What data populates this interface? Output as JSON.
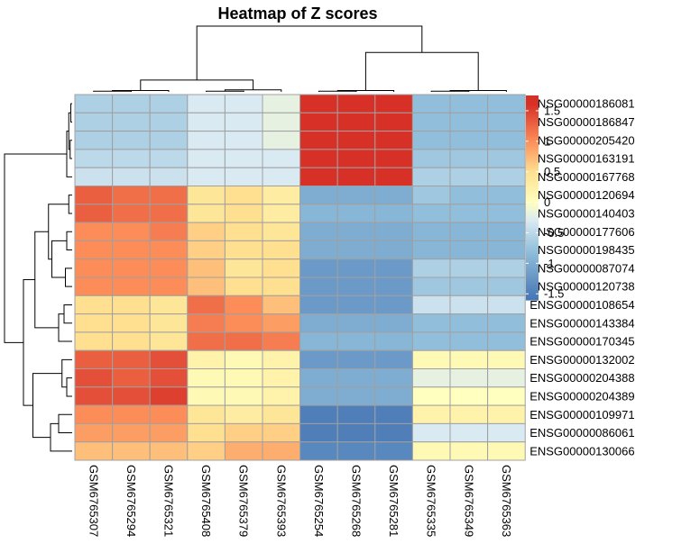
{
  "chart_data": {
    "type": "heatmap",
    "title": "Heatmap of Z scores",
    "rows": [
      "ENSG00000186081",
      "ENSG00000186847",
      "ENSG00000205420",
      "ENSG00000163191",
      "ENSG00000167768",
      "ENSG00000120694",
      "ENSG00000140403",
      "ENSG00000177606",
      "ENSG00000198435",
      "ENSG00000087074",
      "ENSG00000120738",
      "ENSG00000108654",
      "ENSG00000143384",
      "ENSG00000170345",
      "ENSG00000132002",
      "ENSG00000204388",
      "ENSG00000204389",
      "ENSG00000109971",
      "ENSG00000086061",
      "ENSG00000130066"
    ],
    "columns": [
      "GSM6765307",
      "GSM6765294",
      "GSM6765321",
      "GSM6765408",
      "GSM6765379",
      "GSM6765393",
      "GSM6765254",
      "GSM6765268",
      "GSM6765281",
      "GSM6765335",
      "GSM6765349",
      "GSM6765363"
    ],
    "values": [
      [
        -0.6,
        -0.6,
        -0.6,
        -0.3,
        -0.3,
        -0.2,
        1.6,
        1.6,
        1.6,
        -0.8,
        -0.8,
        -0.8
      ],
      [
        -0.6,
        -0.6,
        -0.6,
        -0.3,
        -0.3,
        -0.2,
        1.6,
        1.6,
        1.6,
        -0.8,
        -0.8,
        -0.8
      ],
      [
        -0.6,
        -0.6,
        -0.6,
        -0.3,
        -0.3,
        -0.2,
        1.6,
        1.6,
        1.6,
        -0.8,
        -0.8,
        -0.8
      ],
      [
        -0.5,
        -0.5,
        -0.5,
        -0.3,
        -0.3,
        -0.3,
        1.6,
        1.6,
        1.6,
        -0.7,
        -0.7,
        -0.7
      ],
      [
        -0.4,
        -0.4,
        -0.4,
        -0.3,
        -0.3,
        -0.3,
        1.6,
        1.6,
        1.6,
        -0.6,
        -0.6,
        -0.6
      ],
      [
        1.3,
        1.2,
        1.2,
        0.4,
        0.5,
        0.3,
        -1.0,
        -1.0,
        -1.0,
        -0.7,
        -0.8,
        -0.8
      ],
      [
        1.3,
        1.2,
        1.2,
        0.4,
        0.5,
        0.3,
        -0.9,
        -0.9,
        -0.9,
        -0.8,
        -0.8,
        -0.8
      ],
      [
        1.0,
        1.0,
        1.1,
        0.6,
        0.5,
        0.4,
        -1.0,
        -1.0,
        -1.0,
        -0.9,
        -0.9,
        -0.9
      ],
      [
        1.0,
        1.0,
        1.0,
        0.6,
        0.5,
        0.5,
        -1.0,
        -1.0,
        -1.0,
        -0.9,
        -0.9,
        -0.9
      ],
      [
        1.0,
        1.0,
        1.0,
        0.7,
        0.4,
        0.5,
        -1.2,
        -1.2,
        -1.2,
        -0.6,
        -0.6,
        -0.6
      ],
      [
        1.0,
        1.0,
        1.0,
        0.7,
        0.5,
        0.5,
        -1.2,
        -1.2,
        -1.2,
        -0.7,
        -0.7,
        -0.7
      ],
      [
        0.5,
        0.5,
        0.4,
        1.2,
        1.0,
        0.7,
        -1.2,
        -1.2,
        -1.2,
        -0.4,
        -0.4,
        -0.4
      ],
      [
        0.5,
        0.5,
        0.4,
        1.1,
        1.0,
        0.9,
        -1.0,
        -1.0,
        -1.0,
        -0.8,
        -0.8,
        -0.8
      ],
      [
        0.5,
        0.5,
        0.4,
        1.2,
        1.2,
        1.1,
        -0.9,
        -0.9,
        -0.9,
        -0.8,
        -0.8,
        -0.8
      ],
      [
        1.3,
        1.3,
        1.4,
        0.2,
        0.1,
        0.2,
        -1.2,
        -1.2,
        -1.2,
        0.1,
        0.1,
        0.1
      ],
      [
        1.4,
        1.3,
        1.4,
        0.1,
        0.1,
        0.2,
        -1.0,
        -1.0,
        -1.0,
        -0.2,
        -0.2,
        -0.2
      ],
      [
        1.4,
        1.4,
        1.5,
        0.1,
        0.1,
        0.2,
        -1.0,
        -1.0,
        -1.0,
        0.0,
        0.0,
        0.0
      ],
      [
        1.0,
        1.0,
        1.0,
        0.4,
        0.3,
        0.4,
        -1.5,
        -1.5,
        -1.5,
        0.2,
        0.2,
        0.2
      ],
      [
        0.9,
        0.9,
        0.9,
        0.5,
        0.6,
        0.6,
        -1.5,
        -1.5,
        -1.5,
        -0.3,
        -0.3,
        -0.3
      ],
      [
        0.7,
        0.7,
        0.7,
        0.6,
        0.8,
        0.8,
        -1.4,
        -1.4,
        -1.4,
        0.1,
        0.1,
        0.1
      ]
    ],
    "color_scale": {
      "low": "#4575b4",
      "mid": "#ffffbf",
      "high": "#d73027",
      "stops": [
        {
          "v": -1.6,
          "c": "#4575b4"
        },
        {
          "v": -0.8,
          "c": "#91bfdb"
        },
        {
          "v": -0.3,
          "c": "#d9eaf2"
        },
        {
          "v": 0.0,
          "c": "#ffffbf"
        },
        {
          "v": 0.5,
          "c": "#fee090"
        },
        {
          "v": 1.0,
          "c": "#fc8d59"
        },
        {
          "v": 1.6,
          "c": "#d73027"
        }
      ]
    },
    "legend": {
      "ticks": [
        1.5,
        1,
        0.5,
        0,
        -0.5,
        -1,
        -1.5
      ],
      "tick_labels": [
        "1.5",
        "1",
        "0.5",
        "0",
        "-0.5",
        "-1",
        "-1.5"
      ],
      "range": [
        -1.6,
        1.75
      ],
      "placement": "right"
    },
    "cell_border_color": "#a0a0a0",
    "row_dendrogram": {
      "merges": [
        [
          0,
          1,
          0.02
        ],
        [
          2,
          3,
          0.03
        ],
        [
          20,
          21,
          0.05
        ],
        [
          4,
          22,
          0.08
        ],
        [
          5,
          6,
          0.05
        ],
        [
          7,
          8,
          0.08
        ],
        [
          9,
          10,
          0.1
        ],
        [
          25,
          26,
          0.3
        ],
        [
          24,
          27,
          0.35
        ],
        [
          11,
          12,
          0.12
        ],
        [
          13,
          29,
          0.2
        ],
        [
          28,
          30,
          0.55
        ],
        [
          15,
          16,
          0.08
        ],
        [
          14,
          32,
          0.15
        ],
        [
          17,
          18,
          0.2
        ],
        [
          34,
          19,
          0.32
        ],
        [
          33,
          35,
          0.58
        ],
        [
          31,
          36,
          0.72
        ],
        [
          23,
          37,
          1.0
        ]
      ]
    },
    "col_dendrogram": {
      "merges": [
        [
          0,
          1,
          0.01
        ],
        [
          12,
          2,
          0.02
        ],
        [
          3,
          4,
          0.01
        ],
        [
          14,
          5,
          0.03
        ],
        [
          13,
          15,
          0.18
        ],
        [
          6,
          7,
          0.01
        ],
        [
          17,
          8,
          0.02
        ],
        [
          9,
          10,
          0.01
        ],
        [
          19,
          11,
          0.02
        ],
        [
          18,
          20,
          0.6
        ],
        [
          16,
          21,
          1.0
        ]
      ]
    }
  }
}
